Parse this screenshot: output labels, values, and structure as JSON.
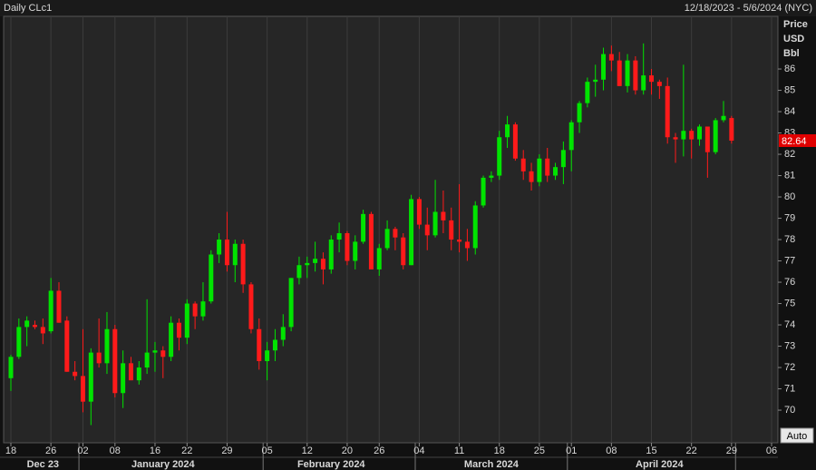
{
  "chart_data": {
    "type": "candlestick",
    "title": "Daily CLc1",
    "subtitle": "12/18/2023 - 5/6/2024 (NYC)",
    "y_label": [
      "Price",
      "USD",
      "Bbl"
    ],
    "autoscale_button": "Auto",
    "up_color": "#00e400",
    "down_color": "#ff1a1a",
    "xgrid": true,
    "ygrid": false,
    "ylim": [
      68.47,
      88.47
    ],
    "yticks": [
      70,
      71,
      72,
      73,
      74,
      75,
      76,
      77,
      78,
      79,
      80,
      81,
      82,
      83,
      84,
      85,
      86
    ],
    "categories": [
      "18",
      null,
      null,
      null,
      null,
      "26",
      null,
      null,
      null,
      "02",
      null,
      null,
      null,
      "08",
      null,
      null,
      null,
      null,
      "16",
      null,
      null,
      null,
      "22",
      null,
      null,
      null,
      null,
      "29",
      null,
      null,
      null,
      null,
      "05",
      null,
      null,
      null,
      null,
      "12",
      null,
      null,
      null,
      null,
      "20",
      null,
      null,
      null,
      "26",
      null,
      null,
      null,
      null,
      "04",
      null,
      null,
      null,
      null,
      "11",
      null,
      null,
      null,
      null,
      "18",
      null,
      null,
      null,
      null,
      "25",
      null,
      null,
      null,
      "01",
      null,
      null,
      null,
      null,
      "08",
      null,
      null,
      null,
      null,
      "15",
      null,
      null,
      null,
      null,
      "22",
      null,
      null,
      null,
      null,
      "29",
      null,
      null,
      null,
      null,
      "06"
    ],
    "month_labels": [
      null,
      null,
      null,
      null,
      "Dec 23",
      null,
      null,
      null,
      null,
      null,
      null,
      null,
      null,
      null,
      null,
      null,
      null,
      null,
      null,
      "January 2024",
      null,
      null,
      null,
      null,
      null,
      null,
      null,
      null,
      null,
      null,
      null,
      null,
      null,
      null,
      null,
      null,
      null,
      null,
      null,
      null,
      "February 2024",
      null,
      null,
      null,
      null,
      null,
      null,
      null,
      null,
      null,
      null,
      null,
      null,
      null,
      null,
      null,
      null,
      null,
      null,
      null,
      "March 2024",
      null,
      null,
      null,
      null,
      null,
      null,
      null,
      null,
      null,
      null,
      null,
      null,
      null,
      null,
      null,
      null,
      null,
      null,
      null,
      null,
      "April 2024",
      null,
      null,
      null,
      null,
      null,
      null,
      null,
      null,
      null,
      null,
      null,
      null,
      null,
      null
    ],
    "open": [
      71.5,
      72.5,
      73.9,
      74.0,
      73.9,
      73.7,
      75.6,
      74.2,
      71.8,
      71.6,
      70.4,
      72.7,
      72.2,
      73.8,
      70.8,
      72.2,
      71.4,
      72.0,
      72.7,
      72.8,
      72.5,
      74.1,
      73.4,
      75.0,
      74.4,
      75.1,
      77.3,
      78.0,
      76.8,
      77.8,
      75.9,
      73.8,
      72.3,
      72.8,
      73.3,
      73.9,
      76.2,
      76.8,
      76.9,
      77.1,
      76.6,
      78.0,
      78.3,
      77.0,
      77.9,
      79.2,
      76.6,
      77.6,
      78.5,
      78.1,
      76.8,
      79.9,
      78.7,
      78.2,
      79.3,
      78.9,
      78.0,
      77.9,
      77.6,
      79.6,
      80.9,
      81.0,
      82.8,
      83.4,
      81.8,
      81.2,
      80.7,
      81.8,
      81.0,
      81.4,
      82.2,
      83.5,
      84.4,
      85.4,
      85.5,
      86.7,
      86.4,
      85.2,
      86.4,
      85.0,
      85.7,
      85.4,
      85.2,
      82.8,
      82.7,
      83.1,
      82.7,
      83.3,
      82.1,
      83.6,
      83.7,
      null,
      null,
      null,
      null,
      null
    ],
    "high": [
      72.6,
      74.3,
      74.4,
      74.2,
      74.3,
      76.2,
      76.0,
      74.4,
      72.3,
      73.8,
      72.9,
      74.3,
      74.6,
      74.0,
      72.8,
      72.5,
      72.3,
      75.2,
      73.2,
      73.0,
      74.4,
      74.3,
      75.2,
      75.1,
      76.0,
      77.5,
      78.3,
      79.3,
      78.0,
      78.0,
      76.0,
      74.3,
      73.2,
      73.8,
      74.5,
      76.2,
      77.2,
      77.2,
      77.9,
      77.4,
      78.2,
      78.8,
      78.4,
      78.2,
      79.4,
      79.3,
      77.8,
      78.9,
      78.6,
      78.3,
      80.1,
      80.0,
      79.5,
      80.8,
      80.3,
      79.5,
      80.6,
      78.5,
      79.8,
      81.0,
      81.2,
      83.1,
      83.8,
      83.5,
      82.2,
      81.6,
      82.0,
      82.3,
      81.6,
      82.6,
      83.6,
      84.5,
      85.6,
      86.2,
      87.0,
      87.1,
      86.8,
      86.7,
      86.6,
      87.2,
      86.0,
      85.5,
      85.6,
      83.0,
      86.2,
      83.2,
      83.4,
      83.3,
      83.7,
      84.5,
      83.8,
      null,
      null,
      null,
      null,
      null
    ],
    "low": [
      70.9,
      72.4,
      73.0,
      73.8,
      73.1,
      73.6,
      74.1,
      71.8,
      71.4,
      69.9,
      69.3,
      72.0,
      71.7,
      70.6,
      70.1,
      71.4,
      71.2,
      71.7,
      71.8,
      71.5,
      72.3,
      72.8,
      73.1,
      73.8,
      74.2,
      75.0,
      76.9,
      76.5,
      76.0,
      75.5,
      73.6,
      71.9,
      71.4,
      72.3,
      73.0,
      73.7,
      75.9,
      76.2,
      76.5,
      75.9,
      76.4,
      77.4,
      76.8,
      76.6,
      77.8,
      76.6,
      76.3,
      77.5,
      77.5,
      76.6,
      76.8,
      78.5,
      77.5,
      78.1,
      78.3,
      77.5,
      77.4,
      77.0,
      77.3,
      79.5,
      80.7,
      80.8,
      82.3,
      81.7,
      80.8,
      80.3,
      80.5,
      80.7,
      80.8,
      80.6,
      81.2,
      83.0,
      84.2,
      84.7,
      85.0,
      85.9,
      85.2,
      84.9,
      84.8,
      84.8,
      84.8,
      84.6,
      82.5,
      81.6,
      81.9,
      81.8,
      82.4,
      80.9,
      82.0,
      83.5,
      82.5,
      null,
      null,
      null,
      null,
      null
    ],
    "close": [
      72.5,
      73.9,
      74.2,
      73.9,
      73.6,
      75.6,
      74.1,
      71.8,
      71.6,
      70.4,
      72.7,
      72.2,
      73.8,
      70.8,
      72.2,
      71.4,
      72.0,
      72.7,
      72.8,
      72.5,
      74.1,
      73.4,
      75.0,
      74.4,
      75.1,
      77.3,
      78.0,
      76.8,
      77.8,
      75.9,
      73.8,
      72.3,
      72.8,
      73.3,
      73.9,
      76.2,
      76.8,
      76.9,
      77.1,
      76.6,
      78.0,
      78.3,
      77.0,
      77.9,
      79.2,
      76.6,
      77.6,
      78.5,
      78.1,
      76.8,
      79.9,
      78.7,
      78.2,
      79.3,
      78.9,
      78.0,
      77.9,
      77.6,
      79.6,
      80.9,
      81.0,
      82.8,
      83.4,
      81.8,
      81.2,
      80.7,
      81.8,
      81.0,
      81.4,
      82.2,
      83.5,
      84.4,
      85.4,
      85.5,
      86.7,
      86.4,
      85.2,
      86.4,
      85.0,
      85.7,
      85.4,
      85.2,
      82.8,
      82.7,
      83.1,
      82.7,
      83.3,
      82.1,
      83.6,
      83.8,
      82.64,
      null,
      null,
      null,
      null,
      null
    ]
  }
}
